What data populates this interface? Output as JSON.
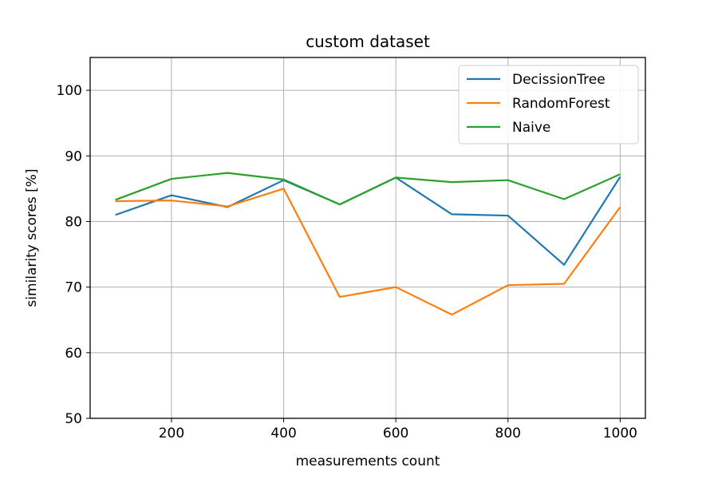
{
  "chart_data": {
    "type": "line",
    "title": "custom dataset",
    "xlabel": "measurements count",
    "ylabel": "similarity scores [%]",
    "x": [
      100,
      200,
      300,
      400,
      500,
      600,
      700,
      800,
      900,
      1000
    ],
    "xlim": [
      55,
      1045
    ],
    "ylim": [
      50,
      105
    ],
    "xticks": [
      200,
      400,
      600,
      800,
      1000
    ],
    "yticks": [
      50,
      60,
      70,
      80,
      90,
      100
    ],
    "grid": true,
    "legend_position": "top-right",
    "series": [
      {
        "name": "DecissionTree",
        "color": "#1f77b4",
        "values": [
          81.0,
          84.0,
          82.2,
          86.3,
          82.6,
          86.7,
          81.1,
          80.9,
          73.4,
          86.8
        ]
      },
      {
        "name": "RandomForest",
        "color": "#ff7f0e",
        "values": [
          83.1,
          83.2,
          82.3,
          85.0,
          68.5,
          70.0,
          65.8,
          70.3,
          70.5,
          82.2
        ]
      },
      {
        "name": "Naive",
        "color": "#2ca02c",
        "values": [
          83.3,
          86.5,
          87.4,
          86.4,
          82.6,
          86.7,
          86.0,
          86.3,
          83.4,
          87.2
        ]
      }
    ]
  }
}
